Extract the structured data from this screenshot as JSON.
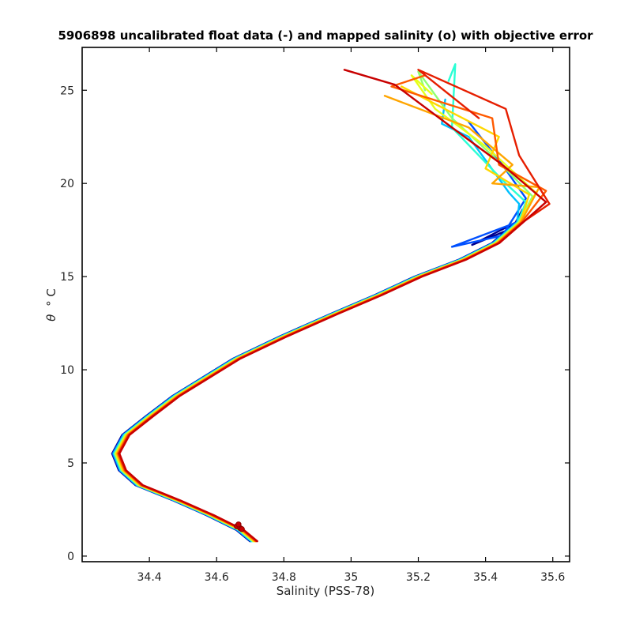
{
  "chart_data": {
    "type": "line",
    "title": "5906898 uncalibrated float data (-) and mapped salinity (o) with objective error",
    "xlabel": "Salinity (PSS-78)",
    "ylabel_symbol": "θ",
    "ylabel_rest": "° C",
    "xlim": [
      34.2,
      35.65
    ],
    "ylim": [
      -0.3,
      27.3
    ],
    "xticks": [
      34.4,
      34.6,
      34.8,
      35,
      35.2,
      35.4,
      35.6
    ],
    "xtick_labels": [
      "34.4",
      "34.6",
      "34.8",
      "35",
      "35.2",
      "35.4",
      "35.6"
    ],
    "yticks": [
      0,
      5,
      10,
      15,
      20,
      25
    ],
    "ytick_labels": [
      "0",
      "5",
      "10",
      "15",
      "20",
      "25"
    ],
    "grid": false,
    "legend": "none",
    "colors": [
      "#00008f",
      "#0050ff",
      "#00c0ff",
      "#2affd5",
      "#8fff70",
      "#e6ff1a",
      "#ffd700",
      "#ffa500",
      "#ff5a00",
      "#e61e00",
      "#c80000"
    ],
    "base_profile": [
      {
        "s": 34.71,
        "t": 0.8
      },
      {
        "s": 34.67,
        "t": 1.4
      },
      {
        "s": 34.58,
        "t": 2.2
      },
      {
        "s": 34.48,
        "t": 3.0
      },
      {
        "s": 34.37,
        "t": 3.8
      },
      {
        "s": 34.32,
        "t": 4.6
      },
      {
        "s": 34.3,
        "t": 5.5
      },
      {
        "s": 34.33,
        "t": 6.5
      },
      {
        "s": 34.4,
        "t": 7.5
      },
      {
        "s": 34.48,
        "t": 8.6
      },
      {
        "s": 34.57,
        "t": 9.6
      },
      {
        "s": 34.66,
        "t": 10.6
      },
      {
        "s": 34.8,
        "t": 11.8
      },
      {
        "s": 34.95,
        "t": 13.0
      },
      {
        "s": 35.08,
        "t": 14.0
      },
      {
        "s": 35.2,
        "t": 15.0
      },
      {
        "s": 35.33,
        "t": 15.9
      },
      {
        "s": 35.43,
        "t": 16.8
      },
      {
        "s": 35.5,
        "t": 17.9
      },
      {
        "s": 35.53,
        "t": 19.0
      },
      {
        "s": 35.47,
        "t": 20.0
      },
      {
        "s": 35.41,
        "t": 21.5
      },
      {
        "s": 35.34,
        "t": 23.0
      },
      {
        "s": 35.28,
        "t": 24.3
      },
      {
        "s": 35.23,
        "t": 25.3
      }
    ],
    "series": [
      {
        "color": "#00008f",
        "top": [
          [
            35.36,
            16.7
          ],
          [
            35.48,
            17.6
          ],
          [
            35.51,
            18.6
          ]
        ]
      },
      {
        "color": "#0050ff",
        "top": [
          [
            35.3,
            16.6
          ],
          [
            35.45,
            17.2
          ],
          [
            35.52,
            19.2
          ],
          [
            35.45,
            21.0
          ],
          [
            35.35,
            23.3
          ]
        ]
      },
      {
        "color": "#00c0ff",
        "top": [
          [
            35.5,
            18.9
          ],
          [
            35.47,
            19.5
          ],
          [
            35.35,
            22.5
          ],
          [
            35.27,
            23.2
          ],
          [
            35.28,
            24.5
          ]
        ]
      },
      {
        "color": "#2affd5",
        "top": [
          [
            35.52,
            19.0
          ],
          [
            35.46,
            20.0
          ],
          [
            35.3,
            23.0
          ],
          [
            35.31,
            26.4
          ],
          [
            35.29,
            25.5
          ]
        ]
      },
      {
        "color": "#8fff70",
        "top": [
          [
            35.54,
            19.3
          ],
          [
            35.42,
            21.5
          ],
          [
            35.3,
            23.5
          ],
          [
            35.2,
            26.0
          ],
          [
            35.22,
            25.0
          ]
        ]
      },
      {
        "color": "#e6ff1a",
        "top": [
          [
            35.55,
            19.5
          ],
          [
            35.4,
            22.0
          ],
          [
            35.25,
            24.0
          ],
          [
            35.18,
            25.8
          ],
          [
            35.24,
            24.8
          ]
        ]
      },
      {
        "color": "#ffd700",
        "top": [
          [
            35.53,
            19.4
          ],
          [
            35.4,
            20.8
          ],
          [
            35.44,
            22.5
          ],
          [
            35.3,
            23.8
          ],
          [
            35.15,
            25.2
          ]
        ]
      },
      {
        "color": "#ffa500",
        "top": [
          [
            35.56,
            19.8
          ],
          [
            35.42,
            20.0
          ],
          [
            35.48,
            21.0
          ],
          [
            35.35,
            23.0
          ],
          [
            35.1,
            24.7
          ]
        ]
      },
      {
        "color": "#ff5a00",
        "top": [
          [
            35.58,
            19.6
          ],
          [
            35.44,
            21.0
          ],
          [
            35.42,
            23.5
          ],
          [
            35.12,
            25.2
          ],
          [
            35.22,
            25.8
          ]
        ]
      },
      {
        "color": "#e61e00",
        "top": [
          [
            35.59,
            18.9
          ],
          [
            35.5,
            21.5
          ],
          [
            35.46,
            24.0
          ],
          [
            35.2,
            26.1
          ],
          [
            35.38,
            23.5
          ]
        ]
      },
      {
        "color": "#c80000",
        "top": [
          [
            35.58,
            19.0
          ],
          [
            35.45,
            21.0
          ],
          [
            35.3,
            23.0
          ],
          [
            35.13,
            25.3
          ],
          [
            34.98,
            26.1
          ]
        ]
      }
    ],
    "mapped_points": [
      {
        "s": 34.66,
        "t": 1.6
      },
      {
        "s": 34.67,
        "t": 1.5
      },
      {
        "s": 34.665,
        "t": 1.7
      },
      {
        "s": 34.675,
        "t": 1.45
      }
    ]
  }
}
